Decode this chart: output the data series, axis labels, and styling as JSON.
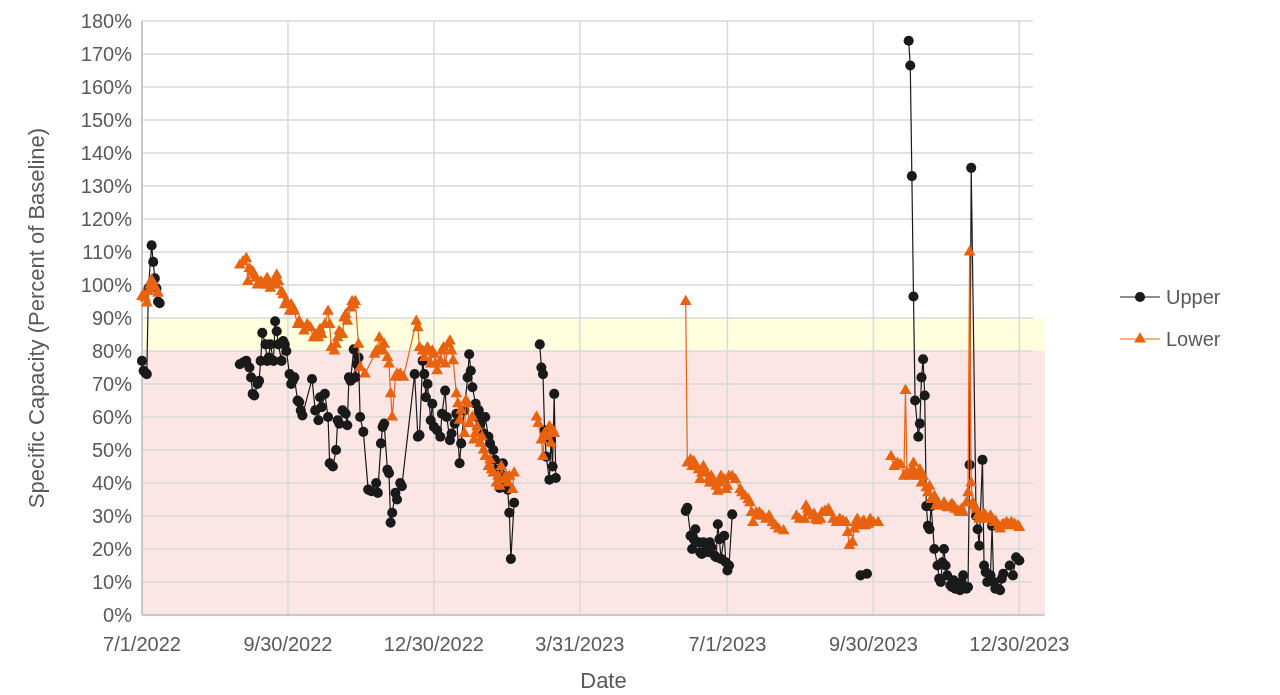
{
  "chart_data": {
    "type": "line",
    "xlabel": "Date",
    "ylabel": "Specific Capacity (Percent of Baseline)",
    "xlim": [
      "2022-07-01",
      "2024-01-15"
    ],
    "xticks": [
      {
        "value": "2022-07-01",
        "label": "7/1/2022"
      },
      {
        "value": "2022-09-30",
        "label": "9/30/2022"
      },
      {
        "value": "2022-12-30",
        "label": "12/30/2022"
      },
      {
        "value": "2023-03-31",
        "label": "3/31/2023"
      },
      {
        "value": "2023-07-01",
        "label": "7/1/2023"
      },
      {
        "value": "2023-09-30",
        "label": "9/30/2023"
      },
      {
        "value": "2023-12-30",
        "label": "12/30/2023"
      }
    ],
    "ylim": [
      0,
      180
    ],
    "yticks": [
      {
        "value": 0,
        "label": "0%"
      },
      {
        "value": 10,
        "label": "10%"
      },
      {
        "value": 20,
        "label": "20%"
      },
      {
        "value": 30,
        "label": "30%"
      },
      {
        "value": 40,
        "label": "40%"
      },
      {
        "value": 50,
        "label": "50%"
      },
      {
        "value": 60,
        "label": "60%"
      },
      {
        "value": 70,
        "label": "70%"
      },
      {
        "value": 80,
        "label": "80%"
      },
      {
        "value": 90,
        "label": "90%"
      },
      {
        "value": 100,
        "label": "100%"
      },
      {
        "value": 110,
        "label": "110%"
      },
      {
        "value": 120,
        "label": "120%"
      },
      {
        "value": 130,
        "label": "130%"
      },
      {
        "value": 140,
        "label": "140%"
      },
      {
        "value": 150,
        "label": "150%"
      },
      {
        "value": 160,
        "label": "160%"
      },
      {
        "value": 170,
        "label": "170%"
      },
      {
        "value": 180,
        "label": "180%"
      }
    ],
    "grid": true,
    "legend": "right",
    "bands": [
      {
        "axis": "y",
        "from": 0,
        "to": 80,
        "color": "#fbe5e5"
      },
      {
        "axis": "y",
        "from": 80,
        "to": 90,
        "color": "#ffffe0"
      }
    ],
    "series": [
      {
        "name": "Upper",
        "color": "#1a1a1a",
        "marker": "circle",
        "x": [
          "2022-07-01",
          "2022-07-02",
          "2022-07-03",
          "2022-07-04",
          "2022-07-05",
          "2022-07-07",
          "2022-07-08",
          "2022-07-09",
          "2022-07-10",
          "2022-07-11",
          "2022-07-12",
          "2022-08-10",
          "2022-08-31",
          "2022-09-02",
          "2022-09-04",
          "2022-09-06",
          "2022-09-07",
          "2022-09-08",
          "2022-09-09",
          "2022-09-11",
          "2022-09-12",
          "2022-09-13",
          "2022-09-14",
          "2022-09-16",
          "2022-09-17",
          "2022-09-18",
          "2022-09-19",
          "2022-09-21",
          "2022-09-22",
          "2022-09-23",
          "2022-09-24",
          "2022-09-26",
          "2022-09-27",
          "2022-09-28",
          "2022-09-29",
          "2022-10-01",
          "2022-10-02",
          "2022-10-03",
          "2022-10-04",
          "2022-10-06",
          "2022-10-07",
          "2022-10-08",
          "2022-10-09",
          "2022-10-15",
          "2022-10-17",
          "2022-10-19",
          "2022-10-20",
          "2022-10-21",
          "2022-10-23",
          "2022-10-25",
          "2022-10-26",
          "2022-10-28",
          "2022-10-30",
          "2022-10-31",
          "2022-11-01",
          "2022-11-03",
          "2022-11-05",
          "2022-11-06",
          "2022-11-07",
          "2022-11-08",
          "2022-11-10",
          "2022-11-11",
          "2022-11-12",
          "2022-11-13",
          "2022-11-14",
          "2022-11-16",
          "2022-11-19",
          "2022-11-21",
          "2022-11-24",
          "2022-11-25",
          "2022-11-27",
          "2022-11-28",
          "2022-11-29",
          "2022-12-01",
          "2022-12-02",
          "2022-12-03",
          "2022-12-04",
          "2022-12-06",
          "2022-12-07",
          "2022-12-09",
          "2022-12-10",
          "2022-12-18",
          "2022-12-20",
          "2022-12-21",
          "2022-12-23",
          "2022-12-24",
          "2022-12-25",
          "2022-12-26",
          "2022-12-28",
          "2022-12-29",
          "2022-12-30",
          "2023-01-01",
          "2023-01-03",
          "2023-01-04",
          "2023-01-06",
          "2023-01-07",
          "2023-01-09",
          "2023-01-10",
          "2023-01-12",
          "2023-01-13",
          "2023-01-15",
          "2023-01-16",
          "2023-01-18",
          "2023-01-20",
          "2023-01-21",
          "2023-01-22",
          "2023-01-23",
          "2023-01-25",
          "2023-01-26",
          "2023-01-27",
          "2023-01-28",
          "2023-01-30",
          "2023-01-31",
          "2023-02-02",
          "2023-02-03",
          "2023-02-05",
          "2023-02-06",
          "2023-02-07",
          "2023-02-09",
          "2023-02-10",
          "2023-02-11",
          "2023-02-12",
          "2023-02-14",
          "2023-02-15",
          "2023-02-16",
          "2023-02-18",
          "2023-02-26",
          "2023-03-06",
          "2023-03-07",
          "2023-03-08",
          "2023-03-09",
          "2023-03-10",
          "2023-03-12",
          "2023-03-13",
          "2023-03-14",
          "2023-03-15",
          "2023-03-16",
          "2023-04-27",
          "2023-06-05",
          "2023-06-06",
          "2023-06-08",
          "2023-06-09",
          "2023-06-10",
          "2023-06-11",
          "2023-06-13",
          "2023-06-14",
          "2023-06-15",
          "2023-06-16",
          "2023-06-18",
          "2023-06-19",
          "2023-06-20",
          "2023-06-21",
          "2023-06-23",
          "2023-06-24",
          "2023-06-25",
          "2023-06-26",
          "2023-06-27",
          "2023-06-29",
          "2023-06-30",
          "2023-07-01",
          "2023-07-02",
          "2023-07-04",
          "2023-08-05",
          "2023-09-22",
          "2023-09-26",
          "2023-10-04",
          "2023-10-22",
          "2023-10-23",
          "2023-10-24",
          "2023-10-25",
          "2023-10-26",
          "2023-10-28",
          "2023-10-29",
          "2023-10-30",
          "2023-10-31",
          "2023-11-01",
          "2023-11-02",
          "2023-11-03",
          "2023-11-04",
          "2023-11-05",
          "2023-11-07",
          "2023-11-09",
          "2023-11-10",
          "2023-11-11",
          "2023-11-12",
          "2023-11-13",
          "2023-11-14",
          "2023-11-15",
          "2023-11-17",
          "2023-11-18",
          "2023-11-19",
          "2023-11-20",
          "2023-11-22",
          "2023-11-23",
          "2023-11-24",
          "2023-11-25",
          "2023-11-27",
          "2023-11-28",
          "2023-11-29",
          "2023-11-30",
          "2023-12-03",
          "2023-12-04",
          "2023-12-05",
          "2023-12-07",
          "2023-12-08",
          "2023-12-09",
          "2023-12-10",
          "2023-12-12",
          "2023-12-13",
          "2023-12-14",
          "2023-12-15",
          "2023-12-17",
          "2023-12-18",
          "2023-12-19",
          "2023-12-20",
          "2023-12-24",
          "2023-12-26",
          "2023-12-28",
          "2023-12-30"
        ],
        "values": [
          77,
          74,
          73.5,
          73,
          99,
          112,
          107,
          102,
          99,
          95,
          94.5,
          null,
          76,
          76.5,
          77,
          75,
          72,
          67,
          66.5,
          70,
          71,
          77,
          85.5,
          82,
          77,
          78,
          82,
          77,
          89,
          86,
          82,
          77,
          83,
          82,
          80,
          73,
          70,
          71,
          72,
          65,
          64.5,
          62,
          60.5,
          71.5,
          62,
          59,
          66,
          63,
          67,
          60,
          46,
          45,
          50,
          59,
          58,
          62,
          61,
          57.5,
          72,
          71,
          80.5,
          72,
          76,
          78,
          60,
          55.5,
          38,
          37.5,
          40,
          37,
          52,
          57,
          58,
          44,
          43,
          28,
          31,
          37,
          35,
          40,
          39,
          73,
          54,
          54.5,
          77,
          73,
          66,
          70,
          59,
          64,
          57,
          56,
          54,
          61,
          68,
          60,
          53,
          55,
          58,
          61,
          46,
          52,
          62,
          72,
          79,
          74,
          69,
          64,
          60,
          62,
          58,
          55,
          60,
          54,
          52,
          50,
          47,
          44,
          38.5,
          40,
          46,
          42,
          38,
          31,
          17,
          34,
          null,
          82,
          75,
          73,
          56,
          48,
          41,
          53,
          45,
          67,
          41.5,
          null,
          31.5,
          32.5,
          24,
          20,
          23,
          26,
          22,
          19,
          18.5,
          22,
          20,
          19,
          22,
          20.5,
          18,
          17.5,
          27.5,
          23,
          17,
          24,
          16,
          13.5,
          15,
          30.5,
          null,
          12,
          12.5,
          null,
          174,
          166.5,
          133,
          96.5,
          65,
          54,
          58,
          72,
          77.5,
          66.5,
          33,
          27,
          26,
          33,
          20,
          15,
          11,
          10,
          16,
          20,
          15,
          12,
          9,
          8.5,
          10.5,
          8,
          8,
          7.5,
          10,
          12,
          8,
          8.5,
          45.5,
          135.5,
          30,
          26,
          21,
          47,
          15,
          13,
          10,
          12,
          27,
          10,
          8,
          8,
          7.5,
          11,
          12.5,
          15,
          12,
          17.5,
          16.5
        ]
      },
      {
        "name": "Lower",
        "color": "#e8620f",
        "marker": "triangle",
        "x": [
          "2022-07-01",
          "2022-07-02",
          "2022-07-03",
          "2022-07-04",
          "2022-07-05",
          "2022-07-06",
          "2022-07-07",
          "2022-07-08",
          "2022-07-09",
          "2022-07-11",
          "2022-08-10",
          "2022-08-31",
          "2022-09-02",
          "2022-09-04",
          "2022-09-05",
          "2022-09-06",
          "2022-09-08",
          "2022-09-09",
          "2022-09-10",
          "2022-09-11",
          "2022-09-13",
          "2022-09-14",
          "2022-09-16",
          "2022-09-17",
          "2022-09-18",
          "2022-09-19",
          "2022-09-21",
          "2022-09-22",
          "2022-09-23",
          "2022-09-24",
          "2022-09-26",
          "2022-09-27",
          "2022-09-28",
          "2022-09-29",
          "2022-10-01",
          "2022-10-02",
          "2022-10-03",
          "2022-10-04",
          "2022-10-06",
          "2022-10-07",
          "2022-10-08",
          "2022-10-10",
          "2022-10-12",
          "2022-10-14",
          "2022-10-16",
          "2022-10-17",
          "2022-10-19",
          "2022-10-20",
          "2022-10-21",
          "2022-10-23",
          "2022-10-25",
          "2022-10-26",
          "2022-10-27",
          "2022-10-29",
          "2022-10-30",
          "2022-10-31",
          "2022-11-01",
          "2022-11-03",
          "2022-11-04",
          "2022-11-05",
          "2022-11-06",
          "2022-11-08",
          "2022-11-09",
          "2022-11-10",
          "2022-11-11",
          "2022-11-13",
          "2022-11-14",
          "2022-11-17",
          "2022-11-23",
          "2022-11-24",
          "2022-11-26",
          "2022-11-27",
          "2022-11-28",
          "2022-11-29",
          "2022-12-01",
          "2022-12-02",
          "2022-12-03",
          "2022-12-04",
          "2022-12-06",
          "2022-12-07",
          "2022-12-09",
          "2022-12-11",
          "2022-12-19",
          "2022-12-20",
          "2022-12-21",
          "2022-12-23",
          "2022-12-24",
          "2022-12-25",
          "2022-12-26",
          "2022-12-28",
          "2022-12-29",
          "2022-12-30",
          "2022-12-31",
          "2023-01-01",
          "2023-01-03",
          "2023-01-04",
          "2023-01-05",
          "2023-01-06",
          "2023-01-08",
          "2023-01-09",
          "2023-01-10",
          "2023-01-11",
          "2023-01-13",
          "2023-01-14",
          "2023-01-15",
          "2023-01-16",
          "2023-01-18",
          "2023-01-19",
          "2023-01-20",
          "2023-01-21",
          "2023-01-23",
          "2023-01-24",
          "2023-01-25",
          "2023-01-26",
          "2023-01-28",
          "2023-01-29",
          "2023-01-30",
          "2023-01-31",
          "2023-02-02",
          "2023-02-03",
          "2023-02-04",
          "2023-02-05",
          "2023-02-07",
          "2023-02-08",
          "2023-02-09",
          "2023-02-10",
          "2023-02-12",
          "2023-02-13",
          "2023-02-14",
          "2023-02-15",
          "2023-02-17",
          "2023-02-18",
          "2023-02-26",
          "2023-03-04",
          "2023-03-05",
          "2023-03-07",
          "2023-03-08",
          "2023-03-09",
          "2023-03-10",
          "2023-03-12",
          "2023-03-13",
          "2023-03-14",
          "2023-03-15",
          "2023-04-27",
          "2023-06-05",
          "2023-06-06",
          "2023-06-08",
          "2023-06-09",
          "2023-06-10",
          "2023-06-11",
          "2023-06-13",
          "2023-06-14",
          "2023-06-15",
          "2023-06-16",
          "2023-06-18",
          "2023-06-19",
          "2023-06-20",
          "2023-06-21",
          "2023-06-23",
          "2023-06-24",
          "2023-06-25",
          "2023-06-26",
          "2023-06-27",
          "2023-06-29",
          "2023-06-30",
          "2023-07-01",
          "2023-07-02",
          "2023-07-04",
          "2023-07-06",
          "2023-07-09",
          "2023-07-10",
          "2023-07-12",
          "2023-07-14",
          "2023-07-15",
          "2023-07-16",
          "2023-07-17",
          "2023-07-19",
          "2023-07-20",
          "2023-07-21",
          "2023-07-23",
          "2023-07-25",
          "2023-07-27",
          "2023-07-29",
          "2023-07-31",
          "2023-08-02",
          "2023-08-05",
          "2023-08-10",
          "2023-08-13",
          "2023-08-15",
          "2023-08-18",
          "2023-08-19",
          "2023-08-20",
          "2023-08-21",
          "2023-08-23",
          "2023-08-24",
          "2023-08-25",
          "2023-08-26",
          "2023-08-28",
          "2023-08-29",
          "2023-08-31",
          "2023-09-02",
          "2023-09-03",
          "2023-09-05",
          "2023-09-07",
          "2023-09-09",
          "2023-09-11",
          "2023-09-13",
          "2023-09-14",
          "2023-09-15",
          "2023-09-17",
          "2023-09-18",
          "2023-09-19",
          "2023-09-20",
          "2023-09-22",
          "2023-09-23",
          "2023-09-24",
          "2023-09-25",
          "2023-09-27",
          "2023-09-28",
          "2023-09-30",
          "2023-10-03",
          "2023-10-09",
          "2023-10-11",
          "2023-10-13",
          "2023-10-15",
          "2023-10-17",
          "2023-10-19",
          "2023-10-20",
          "2023-10-21",
          "2023-10-23",
          "2023-10-24",
          "2023-10-25",
          "2023-10-26",
          "2023-10-28",
          "2023-10-29",
          "2023-10-30",
          "2023-10-31",
          "2023-11-02",
          "2023-11-03",
          "2023-11-04",
          "2023-11-05",
          "2023-11-07",
          "2023-11-08",
          "2023-11-09",
          "2023-11-10",
          "2023-11-12",
          "2023-11-13",
          "2023-11-14",
          "2023-11-15",
          "2023-11-17",
          "2023-11-18",
          "2023-11-19",
          "2023-11-20",
          "2023-11-22",
          "2023-11-23",
          "2023-11-24",
          "2023-11-25",
          "2023-11-27",
          "2023-11-28",
          "2023-11-29",
          "2023-11-30",
          "2023-12-01",
          "2023-12-02",
          "2023-12-03",
          "2023-12-04",
          "2023-12-05",
          "2023-12-07",
          "2023-12-08",
          "2023-12-09",
          "2023-12-10",
          "2023-12-12",
          "2023-12-13",
          "2023-12-14",
          "2023-12-15",
          "2023-12-17",
          "2023-12-18",
          "2023-12-19",
          "2023-12-20",
          "2023-12-22",
          "2023-12-23",
          "2023-12-24",
          "2023-12-25",
          "2023-12-27",
          "2023-12-29",
          "2023-12-30"
        ],
        "values": [
          96.5,
          97,
          96,
          94.5,
          98,
          100,
          101.5,
          99,
          99.5,
          97.5,
          null,
          106,
          107,
          108,
          101,
          105,
          104,
          103,
          102,
          100,
          101,
          100.5,
          100,
          102,
          100,
          99,
          101,
          100,
          103,
          101,
          98,
          97,
          94,
          95,
          92,
          94,
          93,
          92,
          88,
          89,
          88,
          86,
          88,
          87,
          84,
          85,
          84,
          86.5,
          85,
          88,
          92,
          88,
          81,
          80,
          82,
          84,
          86,
          85,
          90,
          91,
          89,
          93,
          95,
          94,
          95,
          82,
          75,
          73,
          79,
          80,
          84,
          81,
          80,
          82,
          78,
          76,
          67,
          60,
          72,
          73,
          73,
          72,
          89,
          87,
          81,
          80,
          78,
          80,
          81,
          76,
          80,
          79,
          76,
          74,
          77,
          80,
          81,
          76,
          82,
          83,
          80,
          77,
          67,
          64,
          59,
          62,
          55,
          65,
          64,
          58,
          60,
          53,
          55,
          57,
          52,
          54,
          50,
          48,
          45,
          47,
          44,
          43,
          40,
          42,
          39,
          45,
          41,
          42,
          40,
          42,
          38,
          43,
          null,
          60,
          58,
          53,
          48,
          55,
          54,
          57,
          52,
          56,
          55,
          null,
          95,
          46,
          47,
          45,
          46.5,
          45,
          44,
          41,
          43,
          45,
          43,
          41,
          40,
          42,
          40,
          39,
          37.5,
          40,
          42,
          41,
          38,
          39,
          42,
          42,
          41,
          38,
          37,
          36,
          35,
          34,
          31,
          28,
          31,
          30,
          31,
          30,
          29,
          30,
          28,
          27,
          26,
          25.5,
          null,
          30,
          29,
          29,
          33,
          32,
          31,
          30,
          30.5,
          29,
          28.5,
          29,
          31,
          31.5,
          32,
          31,
          29,
          28,
          29,
          28.5,
          28,
          25,
          21,
          22,
          26,
          28,
          29,
          27,
          28,
          28.5,
          27,
          27.5,
          29,
          28,
          28,
          null,
          48,
          45,
          46,
          45.5,
          42,
          68,
          43,
          42,
          44,
          46,
          43,
          42,
          44,
          40,
          42,
          38.5,
          37,
          39,
          35,
          36,
          33,
          34,
          33.5,
          33,
          34,
          33,
          32.5,
          33,
          33.5,
          33,
          32,
          31.5,
          31,
          32,
          31,
          34,
          37,
          110,
          40,
          34,
          33,
          32,
          30,
          29,
          30,
          30.5,
          30,
          29,
          30,
          29,
          28,
          28.5,
          27,
          26,
          27,
          27.5,
          28,
          27.5,
          27,
          28,
          27.5,
          27,
          26.5
        ]
      }
    ]
  }
}
